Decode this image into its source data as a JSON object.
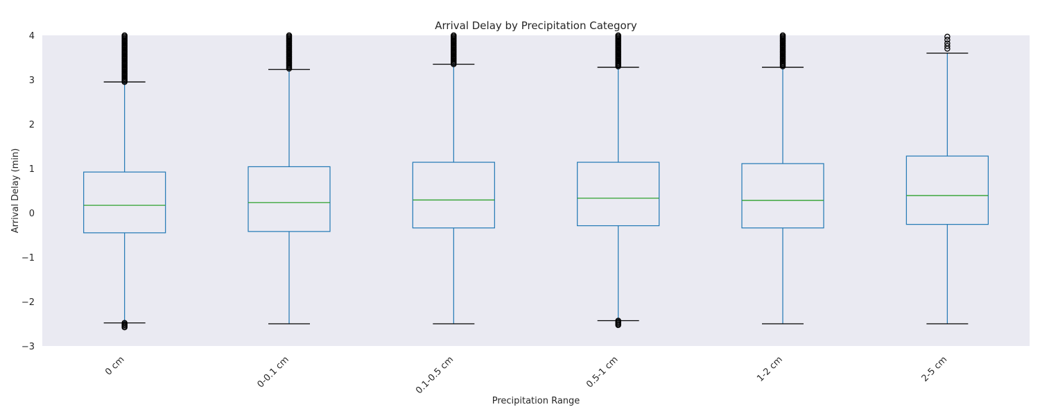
{
  "chart_data": {
    "type": "box",
    "title": "Arrival Delay by Precipitation Category",
    "xlabel": "Precipitation Range",
    "ylabel": "Arrival Delay (min)",
    "ylim": [
      -3,
      4
    ],
    "yticks": [
      -3,
      -2,
      -1,
      0,
      1,
      2,
      3,
      4
    ],
    "ytick_labels": [
      "−3",
      "−2",
      "−1",
      "0",
      "1",
      "2",
      "3",
      "4"
    ],
    "grid": false,
    "colors": {
      "background": "#eaeaf2",
      "box": "#1f77b4",
      "median": "#2ca02c",
      "whisker_cap": "#000000",
      "outlier": "#000000"
    },
    "categories": [
      "0 cm",
      "0-0.1 cm",
      "0.1-0.5 cm",
      "0.5-1 cm",
      "1-2 cm",
      "2-5 cm"
    ],
    "boxes": [
      {
        "whisker_low": -2.48,
        "q1": -0.45,
        "median": 0.17,
        "q3": 0.92,
        "whisker_high": 2.95,
        "outliers_high": {
          "from": 2.95,
          "to": 4.0
        },
        "outliers_low": {
          "from": -2.6,
          "to": -2.48
        }
      },
      {
        "whisker_low": -2.5,
        "q1": -0.42,
        "median": 0.23,
        "q3": 1.04,
        "whisker_high": 3.23,
        "outliers_high": {
          "from": 3.23,
          "to": 4.0
        },
        "outliers_low": null
      },
      {
        "whisker_low": -2.5,
        "q1": -0.34,
        "median": 0.29,
        "q3": 1.14,
        "whisker_high": 3.35,
        "outliers_high": {
          "from": 3.35,
          "to": 4.0
        },
        "outliers_low": null
      },
      {
        "whisker_low": -2.43,
        "q1": -0.29,
        "median": 0.33,
        "q3": 1.14,
        "whisker_high": 3.28,
        "outliers_high": {
          "from": 3.28,
          "to": 4.0
        },
        "outliers_low": {
          "from": -2.55,
          "to": -2.43
        }
      },
      {
        "whisker_low": -2.5,
        "q1": -0.34,
        "median": 0.28,
        "q3": 1.11,
        "whisker_high": 3.28,
        "outliers_high": {
          "from": 3.28,
          "to": 4.0
        },
        "outliers_low": null
      },
      {
        "whisker_low": -2.5,
        "q1": -0.26,
        "median": 0.39,
        "q3": 1.28,
        "whisker_high": 3.6,
        "outliers_high": {
          "points": [
            3.7,
            3.76,
            3.82,
            3.9,
            3.97
          ]
        },
        "outliers_low": null
      }
    ]
  }
}
